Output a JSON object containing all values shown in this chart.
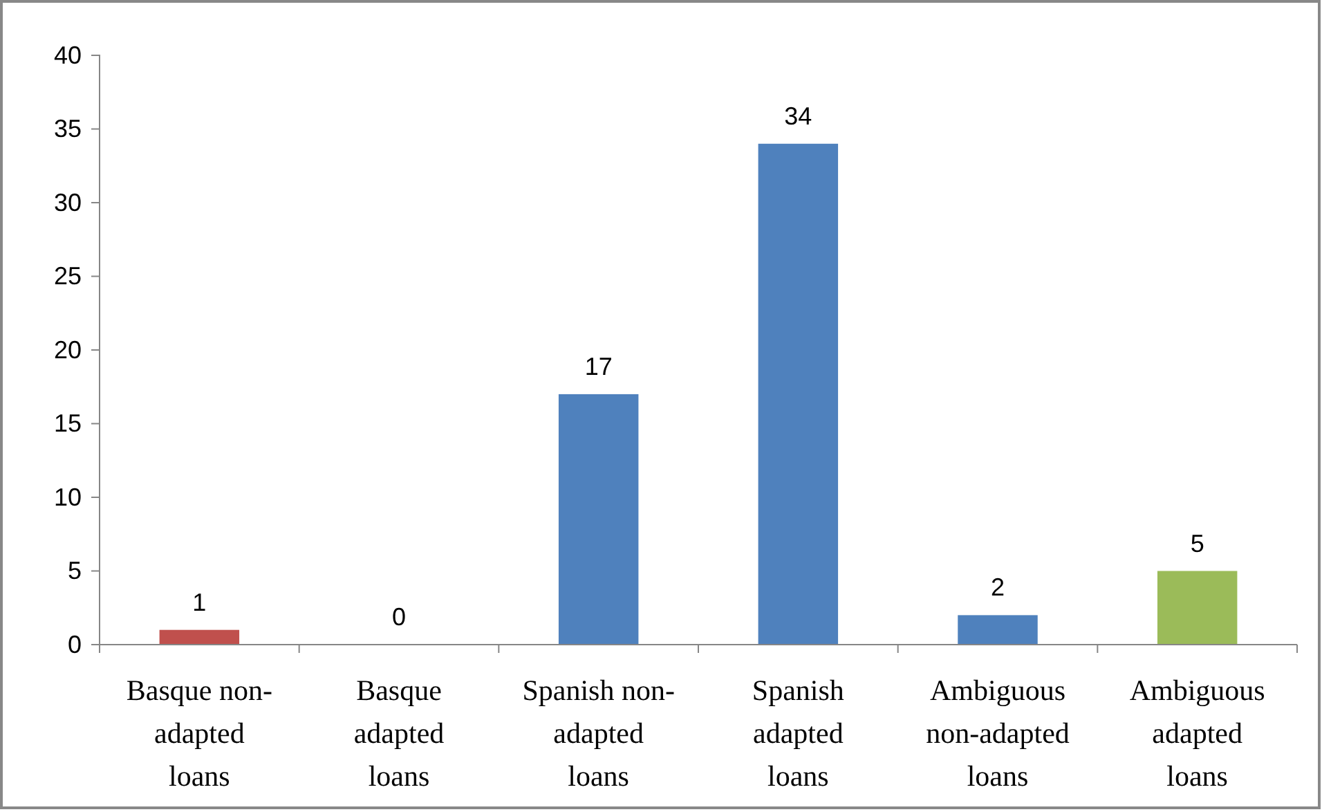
{
  "chart_data": {
    "type": "bar",
    "categories": [
      "Basque non-adapted loans",
      "Basque adapted loans",
      "Spanish non-adapted loans",
      "Spanish adapted loans",
      "Ambiguous non-adapted loans",
      "Ambiguous adapted loans"
    ],
    "values": [
      1,
      0,
      17,
      34,
      2,
      5
    ],
    "colors": [
      "#c0504d",
      "#c0504d",
      "#4f81bd",
      "#4f81bd",
      "#4f81bd",
      "#9bbb59"
    ],
    "ylim": [
      0,
      40
    ],
    "yticks": [
      0,
      5,
      10,
      15,
      20,
      25,
      30,
      35,
      40
    ],
    "data_labels": true,
    "grid": false
  }
}
